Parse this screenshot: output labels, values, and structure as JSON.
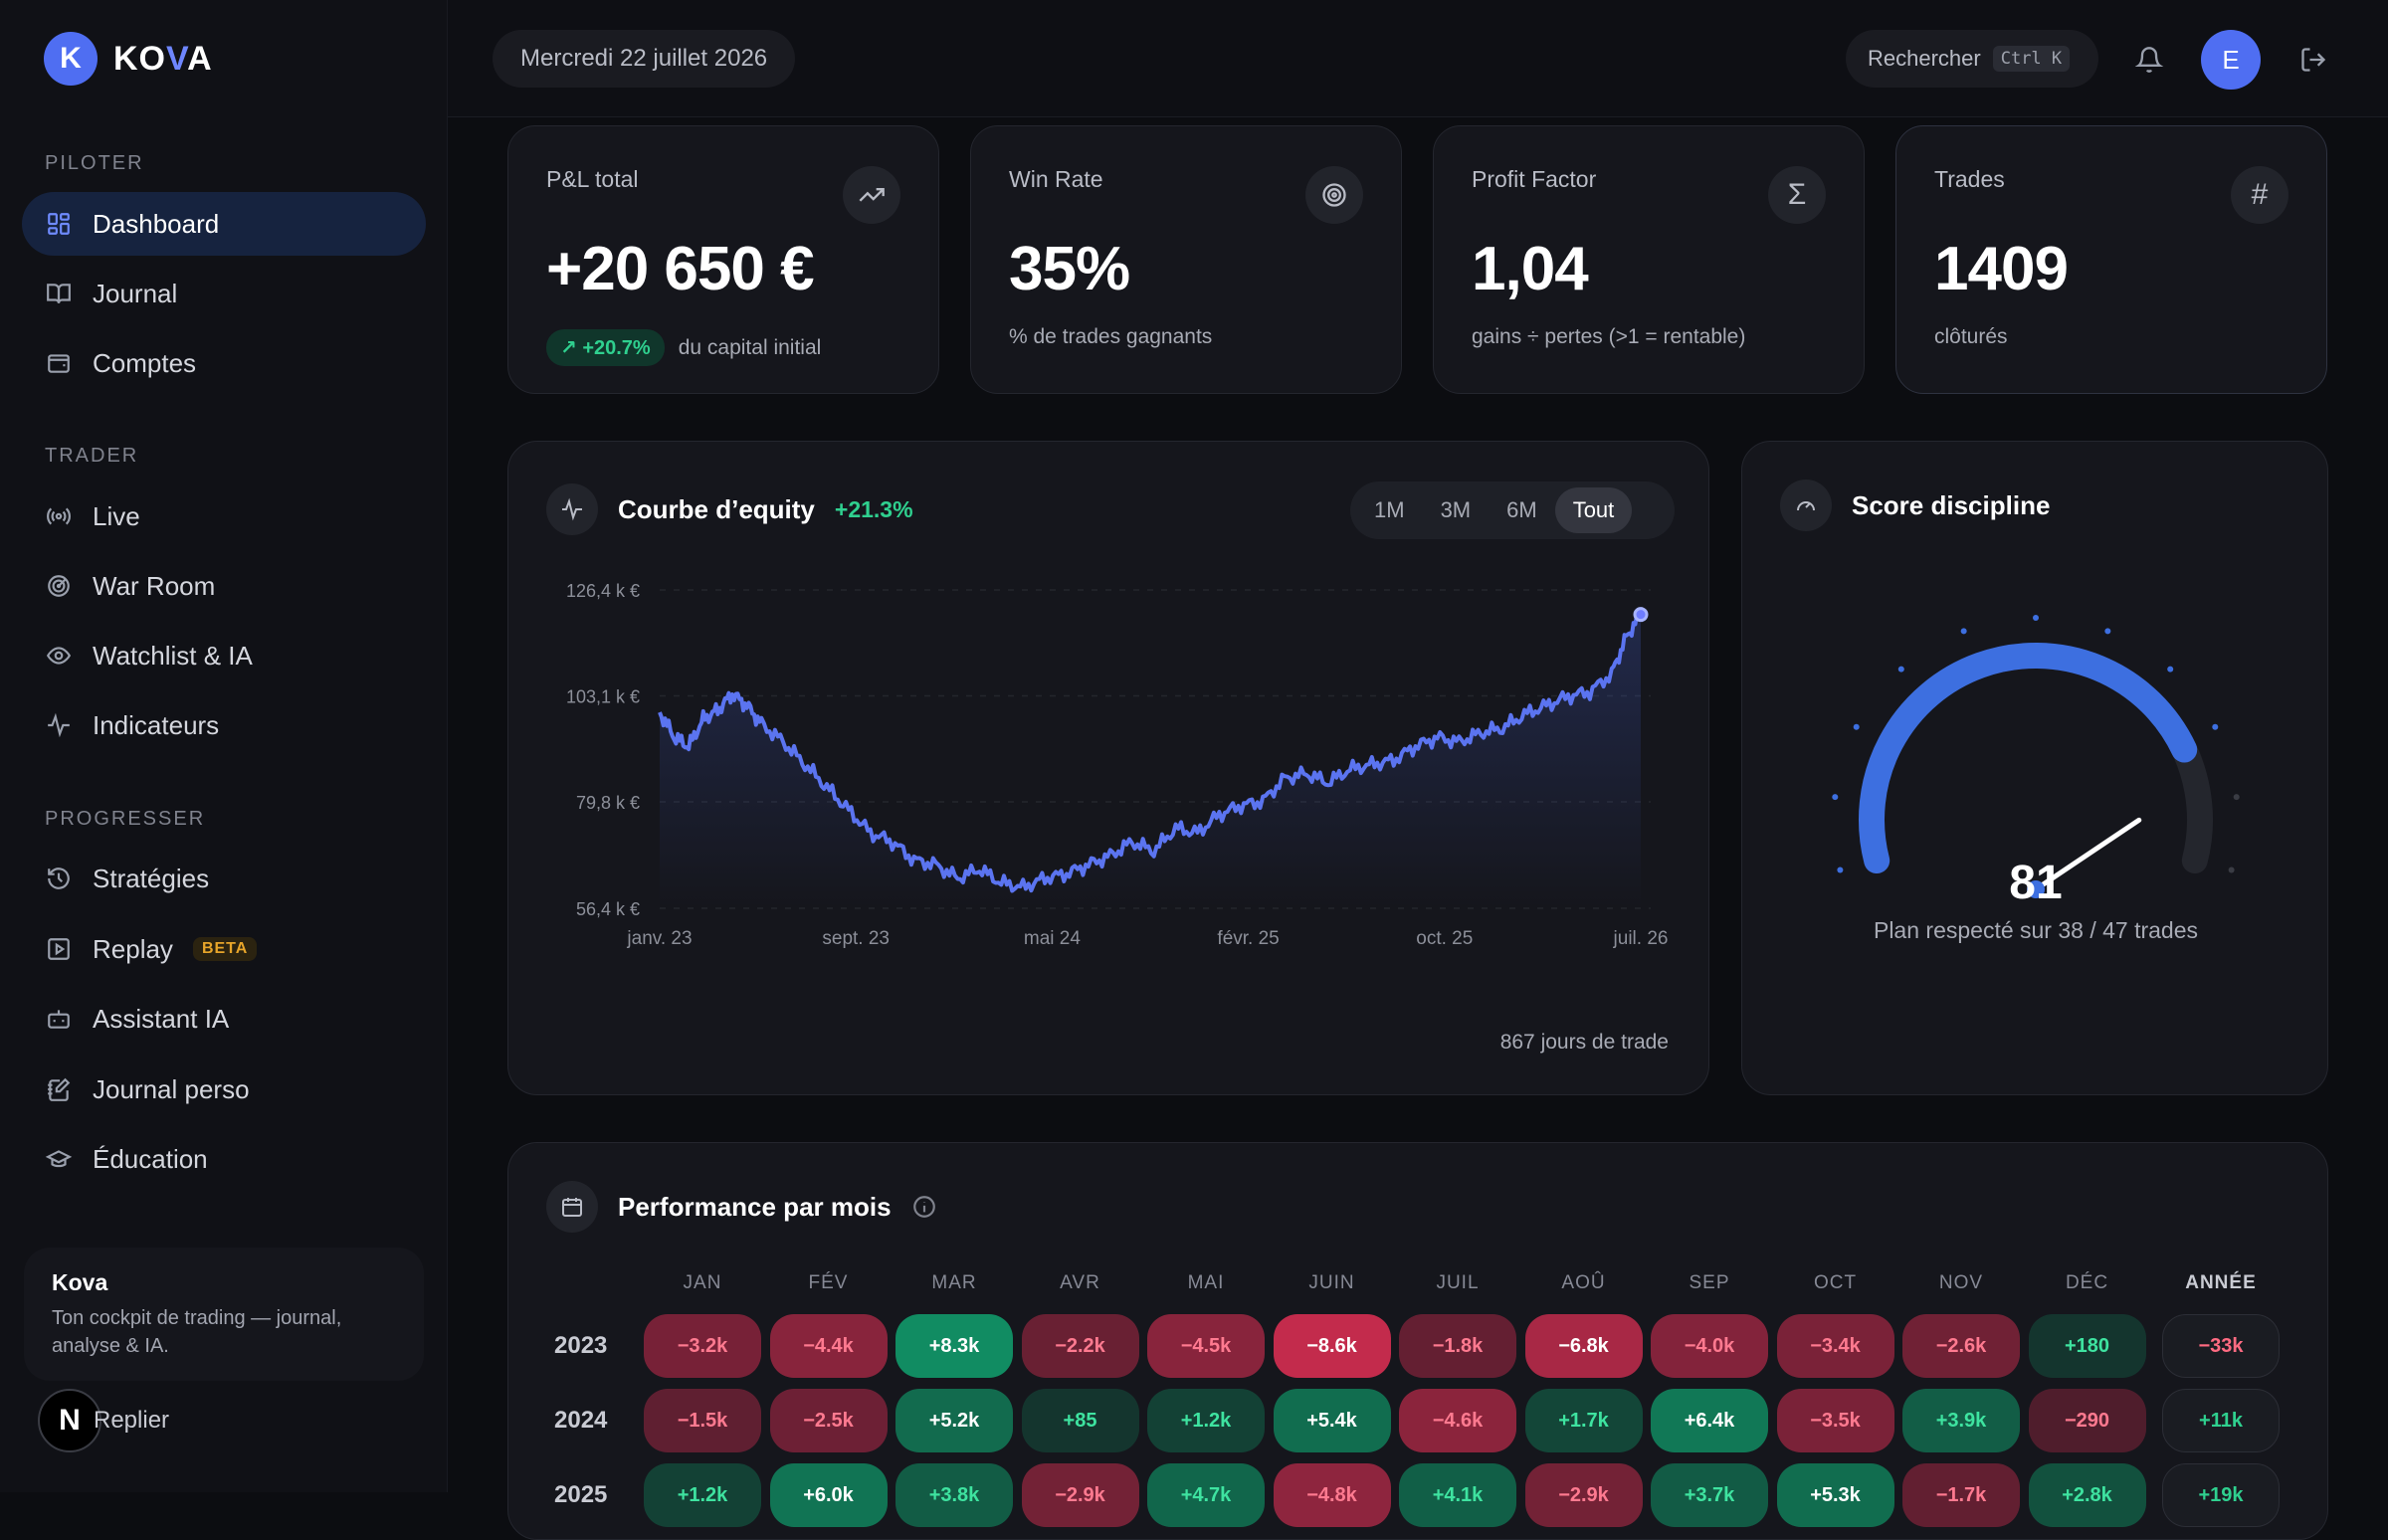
{
  "brand": {
    "initial": "K",
    "name_a": "KO",
    "name_b": "V",
    "name_c": "A"
  },
  "sidebar": {
    "sections": [
      {
        "label": "PILOTER",
        "items": [
          {
            "label": "Dashboard",
            "icon": "grid-icon",
            "active": true
          },
          {
            "label": "Journal",
            "icon": "book-icon"
          },
          {
            "label": "Comptes",
            "icon": "wallet-icon"
          }
        ]
      },
      {
        "label": "TRADER",
        "items": [
          {
            "label": "Live",
            "icon": "broadcast-icon"
          },
          {
            "label": "War Room",
            "icon": "radar-icon"
          },
          {
            "label": "Watchlist & IA",
            "icon": "eye-icon"
          },
          {
            "label": "Indicateurs",
            "icon": "pulse-icon"
          }
        ]
      },
      {
        "label": "PROGRESSER",
        "items": [
          {
            "label": "Stratégies",
            "icon": "history-icon"
          },
          {
            "label": "Replay",
            "icon": "play-square-icon",
            "badge": "BETA"
          },
          {
            "label": "Assistant IA",
            "icon": "bot-icon"
          },
          {
            "label": "Journal perso",
            "icon": "notebook-pen-icon"
          },
          {
            "label": "Éducation",
            "icon": "graduation-cap-icon"
          }
        ]
      }
    ],
    "card": {
      "title": "Kova",
      "desc": "Ton cockpit de trading — journal, analyse & IA."
    },
    "collapse": {
      "initial": "N",
      "label": "Replier"
    }
  },
  "header": {
    "date": "Mercredi 22 juillet 2026",
    "search_label": "Rechercher",
    "search_kbd": "Ctrl K",
    "avatar": "E"
  },
  "kpis": [
    {
      "label": "P&L total",
      "value": "+20 650 €",
      "badge": "+20.7%",
      "sub": "du capital initial",
      "icon": "trending-up-icon"
    },
    {
      "label": "Win Rate",
      "value": "35%",
      "sub": "% de trades gagnants",
      "icon": "target-icon"
    },
    {
      "label": "Profit Factor",
      "value": "1,04",
      "sub": "gains ÷ pertes (>1 = rentable)",
      "icon": "sigma-icon"
    },
    {
      "label": "Trades",
      "value": "1409",
      "sub": "clôturés",
      "icon": "hash-icon"
    }
  ],
  "equity": {
    "title": "Courbe d’equity",
    "gain": "+21.3%",
    "ranges": [
      "1M",
      "3M",
      "6M",
      "Tout"
    ],
    "selected_range": "Tout",
    "footer": "867 jours de trade"
  },
  "chart_data": {
    "type": "line",
    "title": "",
    "xlabel": "",
    "ylabel": "",
    "y_ticks": [
      "126,4 k €",
      "103,1 k €",
      "79,8 k €",
      "56,4 k €"
    ],
    "y_tick_values": [
      126.4,
      103.1,
      79.8,
      56.4
    ],
    "x_ticks": [
      "janv. 23",
      "sept. 23",
      "mai 24",
      "févr. 25",
      "oct. 25",
      "juil. 26"
    ],
    "ylim": [
      56.4,
      126.4
    ],
    "grid": true,
    "series": [
      {
        "color": "#5b74f0",
        "points": [
          [
            0,
            99.5
          ],
          [
            2,
            94
          ],
          [
            4,
            92
          ],
          [
            6,
            98
          ],
          [
            8,
            100
          ],
          [
            10,
            103.5
          ],
          [
            12,
            101
          ],
          [
            14,
            97
          ],
          [
            17,
            93
          ],
          [
            20,
            88
          ],
          [
            23,
            83
          ],
          [
            26,
            78
          ],
          [
            29,
            73
          ],
          [
            32,
            71
          ],
          [
            35,
            67
          ],
          [
            38,
            66
          ],
          [
            41,
            63
          ],
          [
            44,
            65
          ],
          [
            47,
            62
          ],
          [
            50,
            61
          ],
          [
            53,
            63
          ],
          [
            56,
            64
          ],
          [
            59,
            66
          ],
          [
            62,
            68
          ],
          [
            65,
            71
          ],
          [
            68,
            69
          ],
          [
            71,
            74
          ],
          [
            74,
            73
          ],
          [
            77,
            77
          ],
          [
            80,
            79
          ],
          [
            83,
            80
          ],
          [
            86,
            85
          ],
          [
            89,
            86
          ],
          [
            92,
            84
          ],
          [
            95,
            87
          ],
          [
            98,
            88
          ],
          [
            101,
            89
          ],
          [
            104,
            92
          ],
          [
            107,
            94
          ],
          [
            110,
            93
          ],
          [
            113,
            95
          ],
          [
            116,
            96
          ],
          [
            119,
            99
          ],
          [
            122,
            101
          ],
          [
            125,
            103
          ],
          [
            128,
            104
          ],
          [
            131,
            108
          ],
          [
            133,
            116
          ],
          [
            135,
            121
          ]
        ]
      }
    ],
    "x_max": 135,
    "accent": "#5b74f0"
  },
  "discipline": {
    "title": "Score discipline",
    "score": "81",
    "score_value": 81,
    "sub": "Plan respecté sur 38 / 47 trades"
  },
  "performance": {
    "title": "Performance par mois",
    "months": [
      "JAN",
      "FÉV",
      "MAR",
      "AVR",
      "MAI",
      "JUIN",
      "JUIL",
      "AOÛ",
      "SEP",
      "OCT",
      "NOV",
      "DÉC"
    ],
    "total_label": "ANNÉE",
    "rows": [
      {
        "year": "2023",
        "cells": [
          "−3.2k",
          "−4.4k",
          "+8.3k",
          "−2.2k",
          "−4.5k",
          "−8.6k",
          "−1.8k",
          "−6.8k",
          "−4.0k",
          "−3.4k",
          "−2.6k",
          "+180"
        ],
        "total": "−33k"
      },
      {
        "year": "2024",
        "cells": [
          "−1.5k",
          "−2.5k",
          "+5.2k",
          "+85",
          "+1.2k",
          "+5.4k",
          "−4.6k",
          "+1.7k",
          "+6.4k",
          "−3.5k",
          "+3.9k",
          "−290"
        ],
        "total": "+11k"
      },
      {
        "year": "2025",
        "cells": [
          "+1.2k",
          "+6.0k",
          "+3.8k",
          "−2.9k",
          "+4.7k",
          "−4.8k",
          "+4.1k",
          "−2.9k",
          "+3.7k",
          "+5.3k",
          "−1.7k",
          "+2.8k"
        ],
        "total": "+19k"
      }
    ]
  }
}
